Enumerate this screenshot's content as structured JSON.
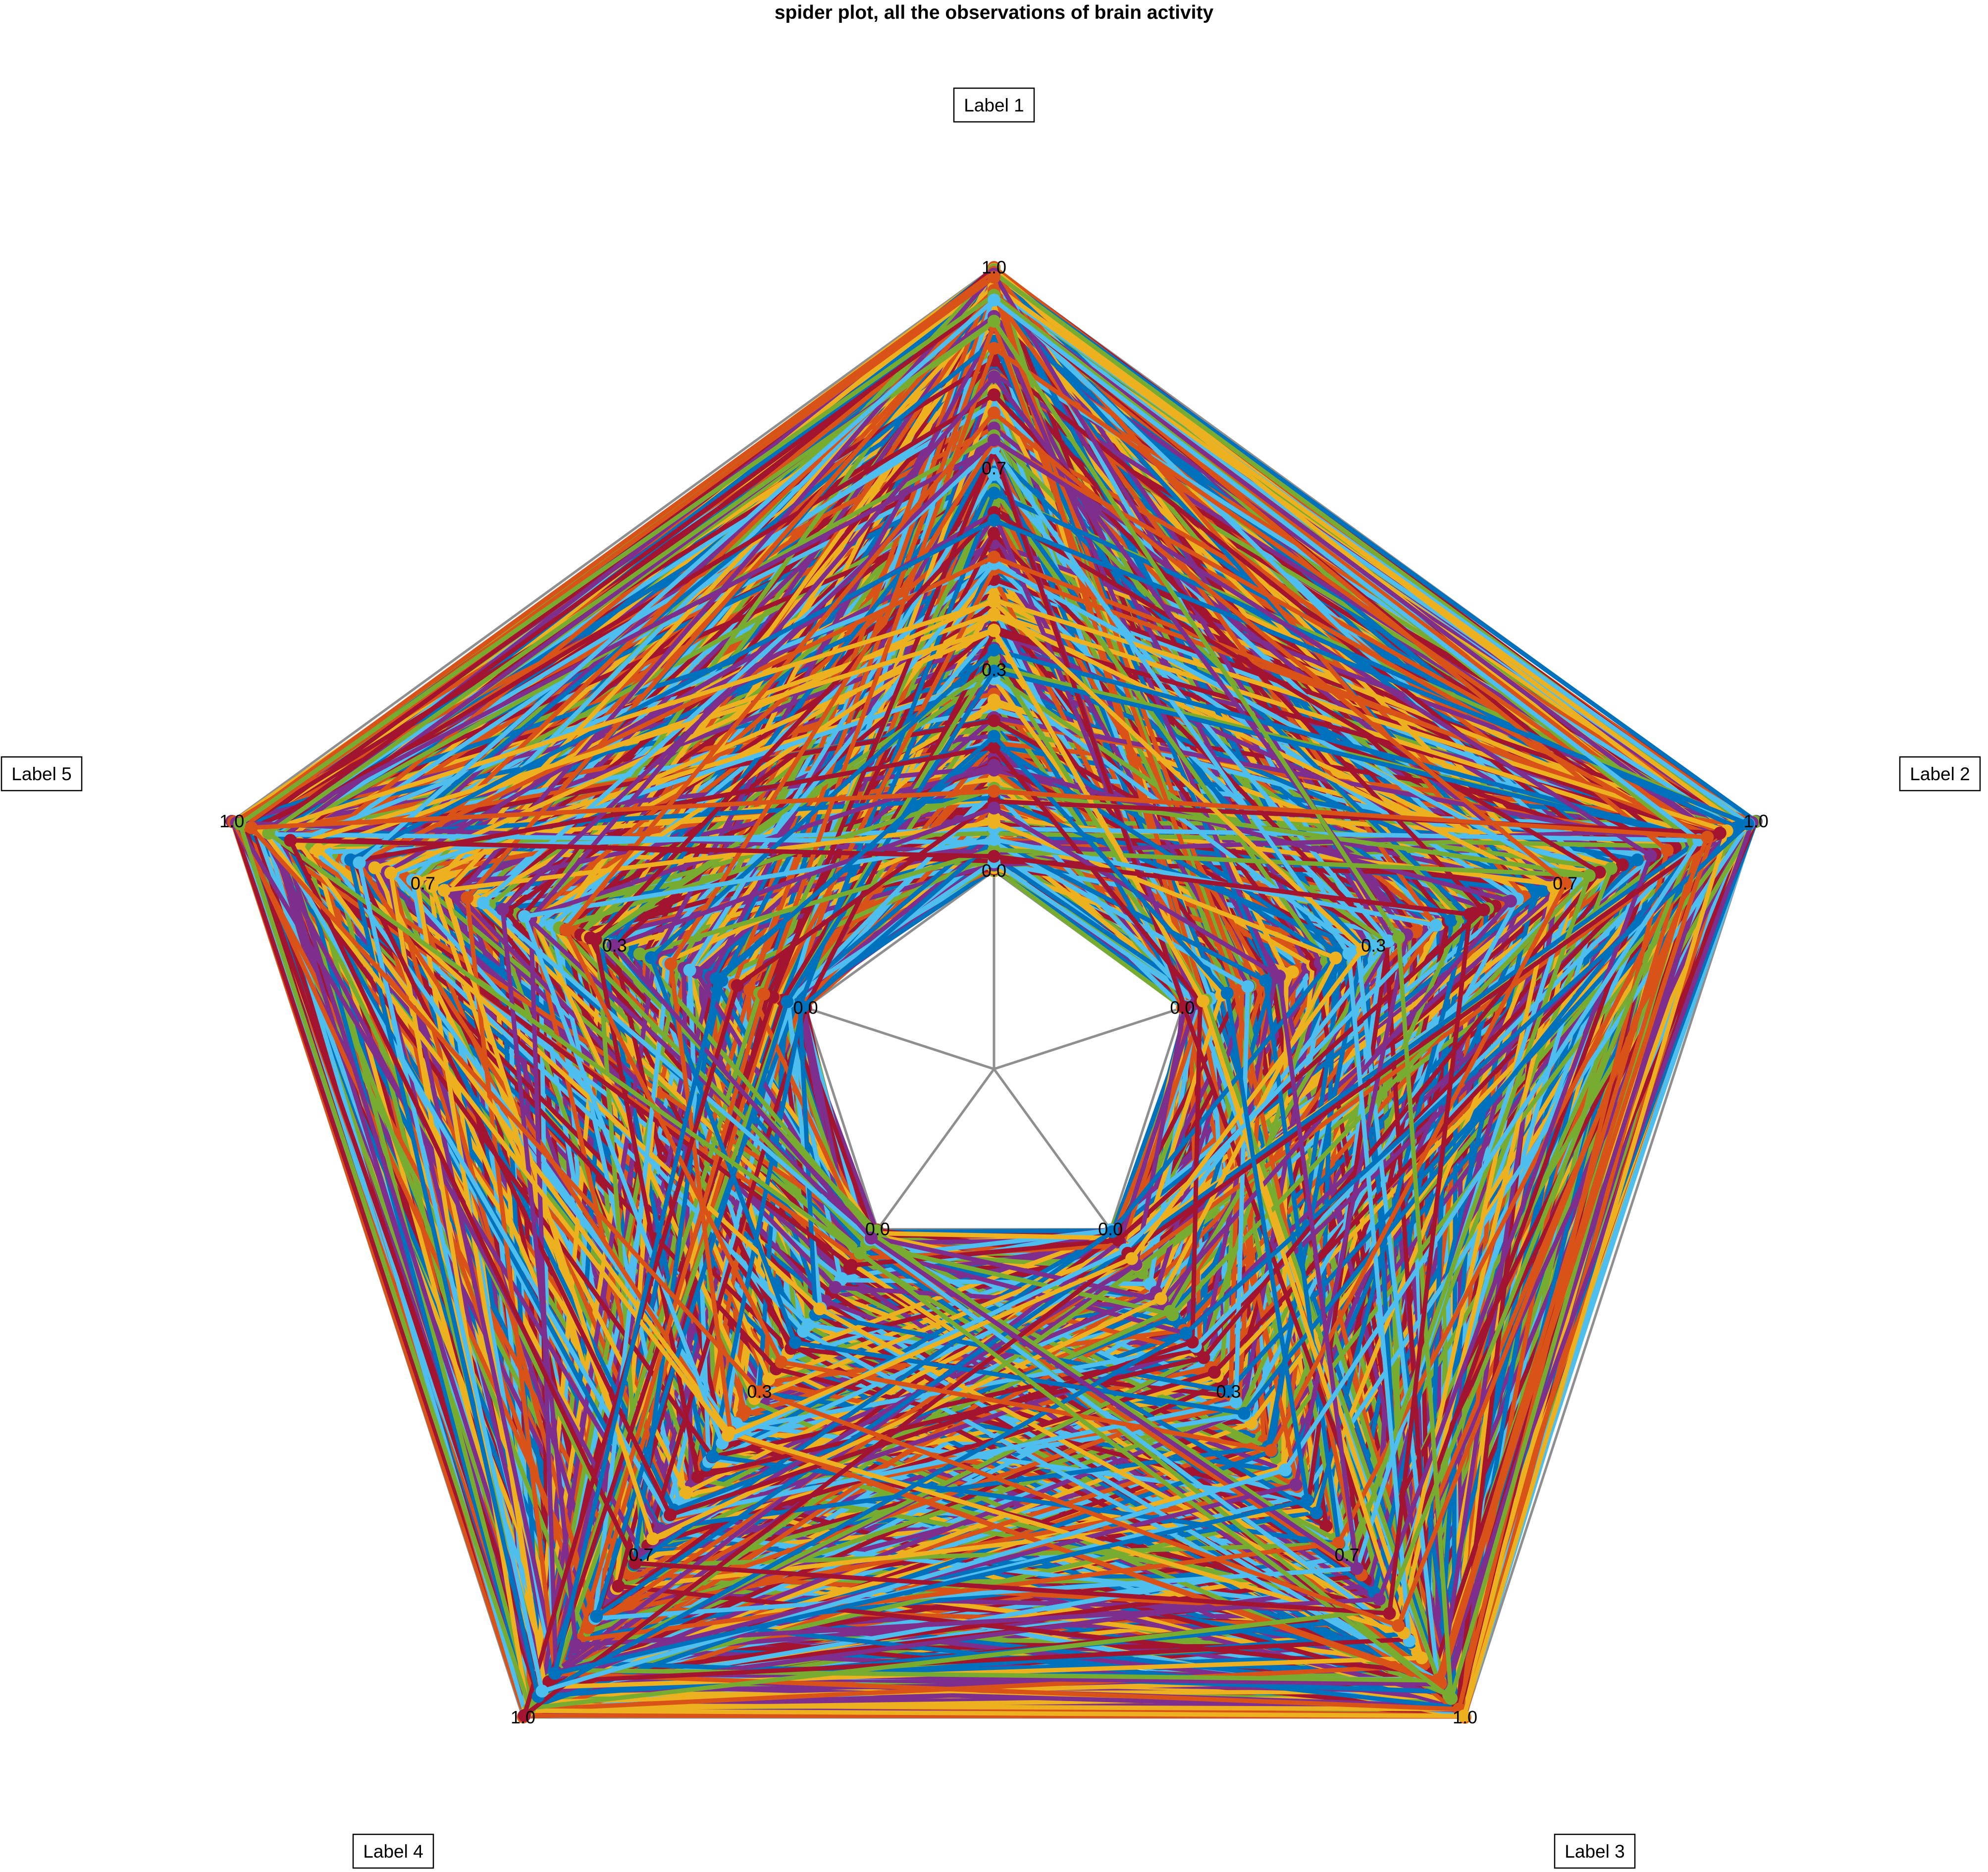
{
  "chart_data": {
    "type": "radar",
    "title": "spider plot, all the observations of brain activity",
    "axes": [
      "Label 1",
      "Label 2",
      "Label 3",
      "Label 4",
      "Label 5"
    ],
    "axis_ranges": [
      [
        0.0,
        1.0
      ],
      [
        0.0,
        1.0
      ],
      [
        0.0,
        1.0
      ],
      [
        0.0,
        1.0
      ],
      [
        0.0,
        1.0
      ]
    ],
    "tick_labels": [
      "0.0",
      "0.3",
      "0.7",
      "1.0"
    ],
    "tick_values": [
      0.0,
      0.333,
      0.667,
      1.0
    ],
    "series_colors": [
      "#0072BD",
      "#D95319",
      "#EDB120",
      "#7E2F8E",
      "#77AC30",
      "#4DBEEE",
      "#A2142F"
    ],
    "observation_count": 1500,
    "series": [
      {
        "values": [
          0.98,
          0.95,
          0.97,
          0.99,
          0.96
        ]
      },
      {
        "values": [
          0.62,
          0.35,
          0.81,
          0.44,
          0.9
        ]
      },
      {
        "values": [
          0.12,
          0.78,
          0.33,
          0.91,
          0.5
        ]
      },
      {
        "values": [
          0.85,
          0.22,
          0.6,
          0.15,
          0.72
        ]
      },
      {
        "values": [
          0.4,
          0.99,
          0.05,
          0.68,
          0.28
        ]
      },
      {
        "values": [
          0.05,
          0.48,
          0.93,
          0.31,
          0.99
        ]
      },
      {
        "values": [
          0.73,
          0.61,
          0.18,
          0.87,
          0.06
        ]
      },
      {
        "values": [
          0.27,
          0.08,
          0.7,
          0.55,
          0.83
        ]
      },
      {
        "values": [
          0.91,
          0.87,
          0.42,
          0.02,
          0.37
        ]
      },
      {
        "values": [
          0.55,
          0.14,
          0.99,
          0.79,
          0.63
        ]
      }
    ]
  },
  "view": {
    "grid": true,
    "legend": "none"
  }
}
